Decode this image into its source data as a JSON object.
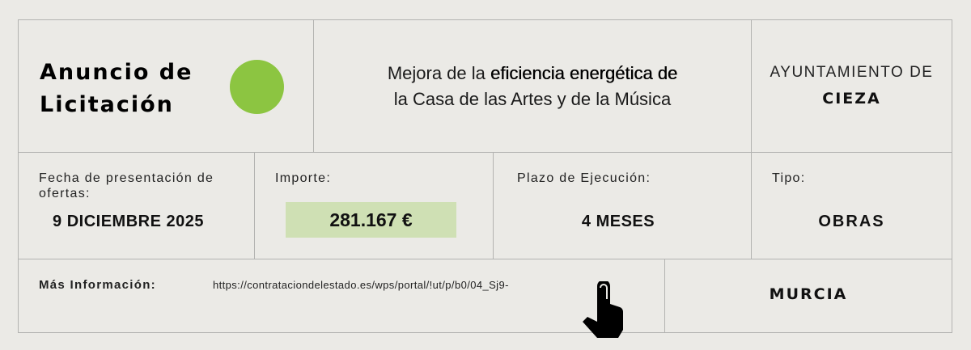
{
  "header": {
    "title_line1": "Anuncio de",
    "title_line2": "Licitación",
    "accent_color": "#8cc541",
    "project_line1_pre": "Mejora de la ",
    "project_line1_bold": "eficiencia energética de",
    "project_line2": "la Casa de las Artes y de la Música",
    "org_label": "AYUNTAMIENTO DE",
    "org_city": "CIEZA"
  },
  "details": {
    "fecha_label": "Fecha de presentación de ofertas:",
    "fecha_value": "9 DICIEMBRE 2025",
    "importe_label": "Importe:",
    "importe_value": "281.167 €",
    "importe_bg": "#cfe0b4",
    "plazo_label": "Plazo de Ejecución:",
    "plazo_value": "4 MESES",
    "tipo_label": "Tipo:",
    "tipo_value": "OBRAS"
  },
  "footer": {
    "more_label": "Más Información:",
    "url": "https://contrataciondelestado.es/wps/portal/!ut/p/b0/04_Sj9-",
    "region": "MURCIA",
    "pointer_icon": "hand-pointer-icon"
  }
}
